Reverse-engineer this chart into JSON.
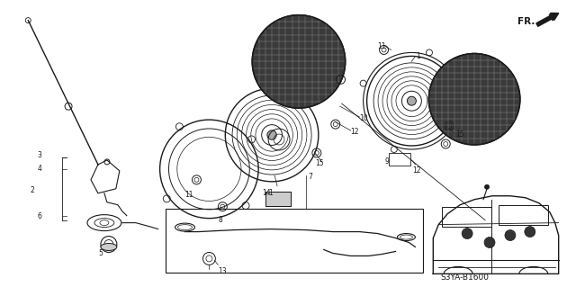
{
  "bg_color": "#ffffff",
  "fig_width": 6.4,
  "fig_height": 3.19,
  "diagram_code": "S3YA-B1600",
  "line_color": "#1a1a1a",
  "label_fontsize": 5.5,
  "diagram_fontsize": 6.5,
  "fr_fontsize": 7.5
}
